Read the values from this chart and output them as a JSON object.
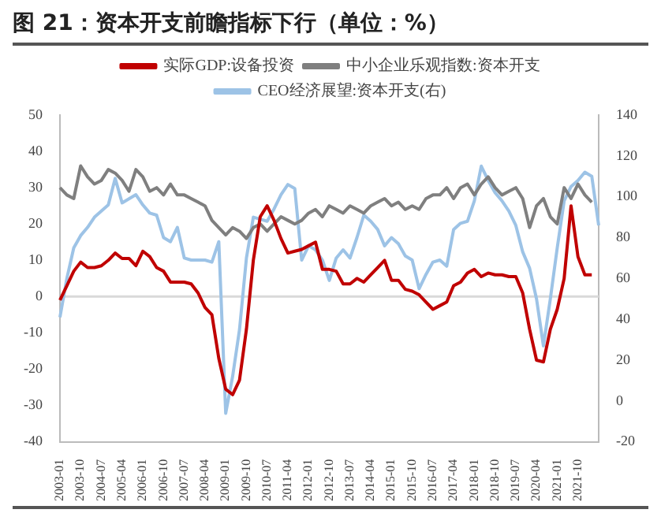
{
  "chart_data": {
    "type": "line",
    "title": "图 21：资本开支前瞻指标下行（单位：%）",
    "categories": [
      "2003-01",
      null,
      null,
      "2003-10",
      null,
      null,
      "2004-07",
      null,
      null,
      "2005-04",
      null,
      null,
      "2006-01",
      null,
      null,
      "2006-10",
      null,
      null,
      "2007-07",
      null,
      null,
      "2008-04",
      null,
      null,
      "2009-01",
      null,
      null,
      "2009-10",
      null,
      null,
      "2010-07",
      null,
      null,
      "2011-04",
      null,
      null,
      "2012-01",
      null,
      null,
      "2012-10",
      null,
      null,
      "2013-07",
      null,
      null,
      "2014-04",
      null,
      null,
      "2015-01",
      null,
      null,
      "2015-10",
      null,
      null,
      "2016-07",
      null,
      null,
      "2017-04",
      null,
      null,
      "2018-01",
      null,
      null,
      "2018-10",
      null,
      null,
      "2019-07",
      null,
      null,
      "2020-04",
      null,
      null,
      "2021-01",
      null,
      null,
      "2021-10",
      null,
      null,
      null
    ],
    "series": [
      {
        "name": "实际GDP:设备投资",
        "color": "#c00000",
        "values": [
          -1,
          3,
          7,
          9.5,
          8,
          8,
          8.5,
          10,
          12,
          10.5,
          10.5,
          8.5,
          12.5,
          11,
          8,
          7,
          4,
          4,
          4,
          3.5,
          1,
          -3,
          -5,
          -17,
          -25.5,
          -27,
          -23,
          -9,
          10,
          22,
          25,
          21,
          16,
          12,
          12.5,
          13,
          14,
          15,
          7.5,
          7.5,
          7,
          3.5,
          3.5,
          5,
          4,
          6,
          8,
          10,
          4.5,
          4.5,
          2,
          1.5,
          0.5,
          -1.5,
          -3.5,
          -2.5,
          -1.5,
          3,
          4,
          6.5,
          7.5,
          5.5,
          6.5,
          6,
          6,
          5.5,
          5.5,
          1,
          -9,
          -17.5,
          -18,
          -9,
          -3.5,
          5,
          25,
          11,
          6,
          6,
          null
        ]
      },
      {
        "name": "中小企业乐观指数:资本开支",
        "color": "#7f7f7f",
        "values": [
          30,
          28,
          27,
          36,
          33,
          31,
          32,
          35,
          34,
          32,
          29,
          35,
          33,
          29,
          30,
          28,
          31,
          28,
          28,
          27,
          26,
          25,
          21,
          19,
          17,
          19,
          18,
          16,
          19,
          20,
          18,
          20,
          22,
          21,
          20,
          21,
          23,
          24,
          22,
          25,
          24,
          23,
          25,
          24,
          23,
          25,
          26,
          27,
          25,
          26,
          24,
          25,
          24,
          27,
          28,
          28,
          30,
          27,
          30,
          31,
          28,
          31,
          33,
          30,
          28,
          29,
          30,
          27,
          19,
          25,
          27,
          22,
          20,
          30,
          27,
          31,
          28,
          26,
          null
        ]
      },
      {
        "name": "CEO经济展望:资本开支(右)",
        "color": "#9dc3e6",
        "axis": "y2",
        "values": [
          41,
          60,
          75,
          81,
          85,
          90,
          93,
          96,
          109,
          97,
          99,
          101,
          96,
          92,
          91,
          80,
          78,
          85,
          70,
          69,
          69,
          69,
          68,
          78,
          -6,
          12,
          35,
          70,
          90,
          89,
          88,
          94,
          101,
          106,
          104,
          69,
          76,
          74,
          69,
          59,
          70,
          74,
          70,
          80,
          91,
          88,
          84,
          76,
          80,
          77,
          71,
          69,
          55,
          62,
          68,
          69,
          66,
          84,
          87,
          88,
          98,
          115,
          108,
          102,
          98,
          93,
          86,
          73,
          65,
          50,
          27,
          50,
          75,
          98,
          105,
          108,
          112,
          110,
          86
        ]
      }
    ],
    "ylim": [
      -40,
      50
    ],
    "yticks": [
      -40,
      -30,
      -20,
      -10,
      0,
      10,
      20,
      30,
      40,
      50
    ],
    "y2lim": [
      -20,
      140
    ],
    "y2ticks": [
      -20,
      0,
      20,
      40,
      60,
      80,
      100,
      120,
      140
    ],
    "ref_lines": [
      {
        "axis": "y",
        "value": 0,
        "color": "#d9d9d9"
      }
    ],
    "grid": false,
    "legend": "top",
    "marker": "none",
    "line_style": "solid"
  }
}
